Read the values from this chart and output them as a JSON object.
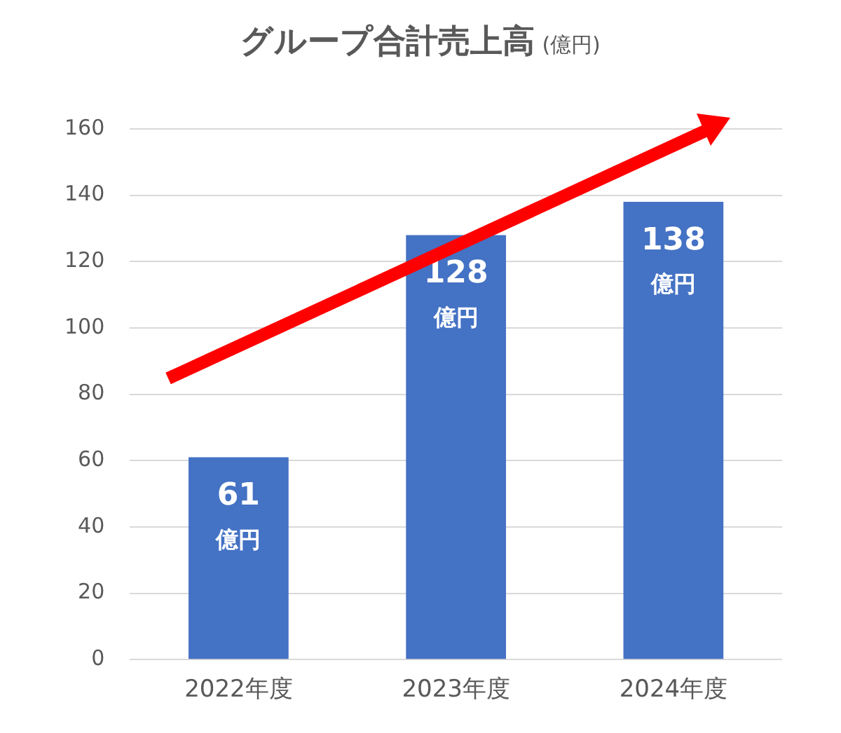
{
  "chart_data": {
    "type": "bar",
    "title": "グループ合計売上高",
    "subtitle": "(億円)",
    "categories": [
      "2022年度",
      "2023年度",
      "2024年度"
    ],
    "values": [
      61,
      128,
      138
    ],
    "color": "#4472c4",
    "value_labels": [
      "61\n億円",
      "128\n億円",
      "138\n億円"
    ],
    "ylim": [
      0,
      160
    ],
    "yticks": [
      0,
      20,
      40,
      60,
      80,
      100,
      120,
      140,
      160
    ],
    "grid": "y"
  }
}
